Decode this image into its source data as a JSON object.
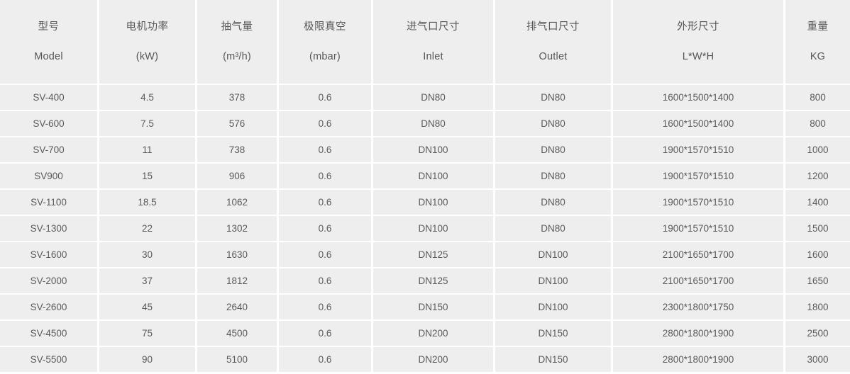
{
  "table": {
    "columns": [
      {
        "zh": "型号",
        "en": "Model"
      },
      {
        "zh": "电机功率",
        "en": "(kW)"
      },
      {
        "zh": "抽气量",
        "en": "(m³/h)"
      },
      {
        "zh": "极限真空",
        "en": "(mbar)"
      },
      {
        "zh": "进气口尺寸",
        "en": "Inlet"
      },
      {
        "zh": "排气口尺寸",
        "en": "Outlet"
      },
      {
        "zh": "外形尺寸",
        "en": "L*W*H"
      },
      {
        "zh": "重量",
        "en": "KG"
      }
    ],
    "rows": [
      [
        "SV-400",
        "4.5",
        "378",
        "0.6",
        "DN80",
        "DN80",
        "1600*1500*1400",
        "800"
      ],
      [
        "SV-600",
        "7.5",
        "576",
        "0.6",
        "DN80",
        "DN80",
        "1600*1500*1400",
        "800"
      ],
      [
        "SV-700",
        "11",
        "738",
        "0.6",
        "DN100",
        "DN80",
        "1900*1570*1510",
        "1000"
      ],
      [
        "SV900",
        "15",
        "906",
        "0.6",
        "DN100",
        "DN80",
        "1900*1570*1510",
        "1200"
      ],
      [
        "SV-1100",
        "18.5",
        "1062",
        "0.6",
        "DN100",
        "DN80",
        "1900*1570*1510",
        "1400"
      ],
      [
        "SV-1300",
        "22",
        "1302",
        "0.6",
        "DN100",
        "DN80",
        "1900*1570*1510",
        "1500"
      ],
      [
        "SV-1600",
        "30",
        "1630",
        "0.6",
        "DN125",
        "DN100",
        "2100*1650*1700",
        "1600"
      ],
      [
        "SV-2000",
        "37",
        "1812",
        "0.6",
        "DN125",
        "DN100",
        "2100*1650*1700",
        "1650"
      ],
      [
        "SV-2600",
        "45",
        "2640",
        "0.6",
        "DN150",
        "DN100",
        "2300*1800*1750",
        "1800"
      ],
      [
        "SV-4500",
        "75",
        "4500",
        "0.6",
        "DN200",
        "DN150",
        "2800*1800*1900",
        "2500"
      ],
      [
        "SV-5500",
        "90",
        "5100",
        "0.6",
        "DN200",
        "DN150",
        "2800*1800*1900",
        "3000"
      ]
    ]
  },
  "colors": {
    "cell_background": "#eeeeee",
    "grid_separator": "#ffffff",
    "text": "#595959"
  }
}
